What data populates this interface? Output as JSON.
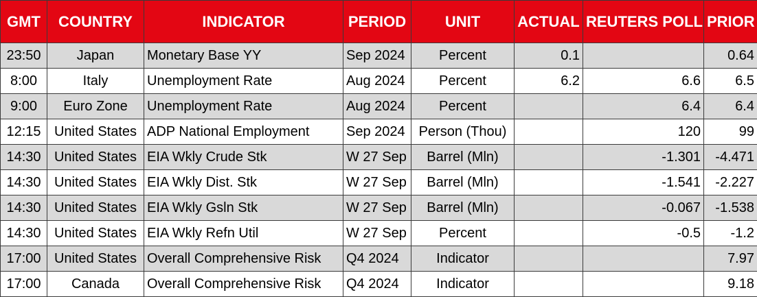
{
  "colors": {
    "header_bg": "#e30613",
    "header_text": "#ffffff",
    "row_shade": "#d9d9d9",
    "row_plain": "#ffffff"
  },
  "headers": {
    "gmt": "GMT",
    "country": "COUNTRY",
    "indicator": "INDICATOR",
    "period": "PERIOD",
    "unit": "UNIT",
    "actual": "ACTUAL",
    "poll": "REUTERS POLL",
    "prior": "PRIOR"
  },
  "rows": [
    {
      "gmt": "23:50",
      "country": "Japan",
      "indicator": "Monetary Base YY",
      "period": "Sep 2024",
      "unit": "Percent",
      "actual": "0.1",
      "poll": "",
      "prior": "0.64"
    },
    {
      "gmt": "8:00",
      "country": "Italy",
      "indicator": "Unemployment Rate",
      "period": "Aug 2024",
      "unit": "Percent",
      "actual": "6.2",
      "poll": "6.6",
      "prior": "6.5"
    },
    {
      "gmt": "9:00",
      "country": "Euro Zone",
      "indicator": "Unemployment Rate",
      "period": "Aug 2024",
      "unit": "Percent",
      "actual": "",
      "poll": "6.4",
      "prior": "6.4"
    },
    {
      "gmt": "12:15",
      "country": "United States",
      "indicator": "ADP National Employment",
      "period": "Sep 2024",
      "unit": "Person (Thou)",
      "actual": "",
      "poll": "120",
      "prior": "99"
    },
    {
      "gmt": "14:30",
      "country": "United States",
      "indicator": "EIA Wkly Crude Stk",
      "period": "W 27 Sep",
      "unit": "Barrel (Mln)",
      "actual": "",
      "poll": "-1.301",
      "prior": "-4.471"
    },
    {
      "gmt": "14:30",
      "country": "United States",
      "indicator": "EIA Wkly Dist. Stk",
      "period": "W 27 Sep",
      "unit": "Barrel (Mln)",
      "actual": "",
      "poll": "-1.541",
      "prior": "-2.227"
    },
    {
      "gmt": "14:30",
      "country": "United States",
      "indicator": "EIA Wkly Gsln Stk",
      "period": "W 27 Sep",
      "unit": "Barrel (Mln)",
      "actual": "",
      "poll": "-0.067",
      "prior": "-1.538"
    },
    {
      "gmt": "14:30",
      "country": "United States",
      "indicator": "EIA Wkly Refn Util",
      "period": "W 27 Sep",
      "unit": "Percent",
      "actual": "",
      "poll": "-0.5",
      "prior": "-1.2"
    },
    {
      "gmt": "17:00",
      "country": "United States",
      "indicator": "Overall Comprehensive Risk",
      "period": "Q4 2024",
      "unit": "Indicator",
      "actual": "",
      "poll": "",
      "prior": "7.97"
    },
    {
      "gmt": "17:00",
      "country": "Canada",
      "indicator": "Overall Comprehensive Risk",
      "period": "Q4 2024",
      "unit": "Indicator",
      "actual": "",
      "poll": "",
      "prior": "9.18"
    }
  ]
}
